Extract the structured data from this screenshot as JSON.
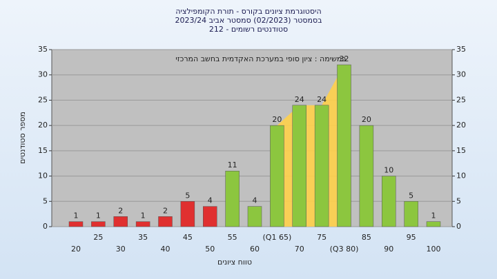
{
  "chart_data": {
    "type": "bar",
    "title": [
      "היסטוגרמת ציונים בקורס - תורת הקומפילציה",
      "בסמסטר  (02/2023)  סמסטר אביב 2023/24",
      "סטודנטים רשומים - 212"
    ],
    "annotation": "במשימה : ציון סופי במערכת האקדמית בחשב המרכזי",
    "x_label": "טווח ציונים",
    "y_label": "מספר סטודנטים",
    "categories": [
      "20",
      "25",
      "30",
      "35",
      "40",
      "45",
      "50",
      "55",
      "60",
      "(Q1 65)",
      "70",
      "75",
      "(Q3 80)",
      "85",
      "90",
      "95",
      "100"
    ],
    "values": [
      1,
      1,
      2,
      1,
      2,
      5,
      4,
      11,
      4,
      20,
      24,
      24,
      32,
      20,
      10,
      5,
      1
    ],
    "colors": [
      "#e03030",
      "#e03030",
      "#e03030",
      "#e03030",
      "#e03030",
      "#e03030",
      "#e03030",
      "#8cc63f",
      "#8cc63f",
      "#8cc63f",
      "#8cc63f",
      "#8cc63f",
      "#8cc63f",
      "#8cc63f",
      "#8cc63f",
      "#8cc63f",
      "#8cc63f"
    ],
    "ylim": [
      0,
      35
    ],
    "yticks": [
      0,
      5,
      10,
      15,
      20,
      25,
      30,
      35
    ],
    "y2lim": [
      0,
      35
    ],
    "y2ticks": [
      0,
      5,
      10,
      15,
      20,
      25,
      30,
      35
    ],
    "grid": true
  }
}
